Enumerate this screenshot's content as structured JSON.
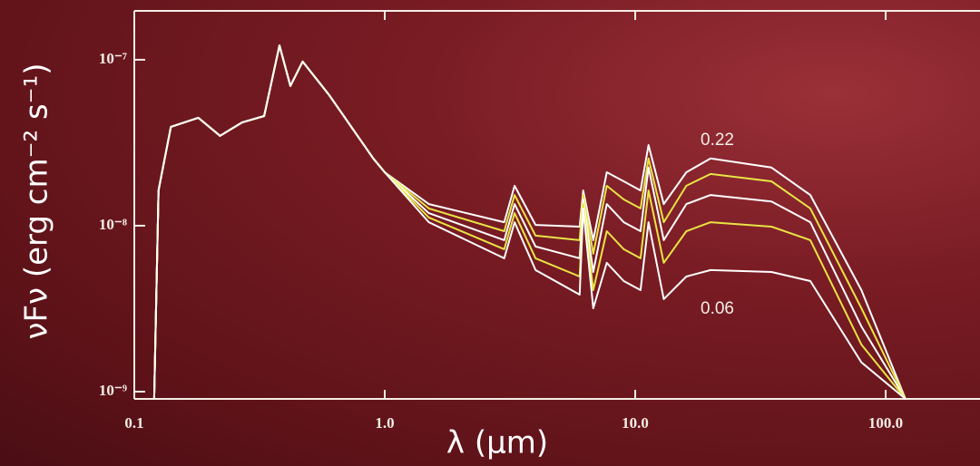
{
  "chart_data": {
    "type": "line",
    "xscale": "log",
    "yscale": "log",
    "x_label": "λ (μm)",
    "y_label": "νFν (erg cm⁻² s⁻¹)",
    "annotations": [
      {
        "text": "0.22"
      },
      {
        "text": "0.06"
      }
    ],
    "xlim": [
      0.1,
      238
    ],
    "ylim": [
      9.04e-10,
      1.97e-07
    ],
    "xticks": [
      0.1,
      {
        "value": 1,
        "label": "1.0"
      },
      {
        "value": 10,
        "label": "10.0"
      },
      {
        "value": 100,
        "label": "100.0"
      }
    ],
    "yticks": [
      {
        "value": 1e-07,
        "label": "10⁻⁷"
      },
      {
        "value": 1e-08,
        "label": "10⁻⁸"
      },
      {
        "value": 1e-09,
        "label": "10⁻⁹"
      }
    ],
    "x": [
      0.12,
      0.125,
      0.14,
      0.18,
      0.22,
      0.27,
      0.33,
      0.38,
      0.42,
      0.47,
      0.6,
      0.9,
      1.0,
      1.5,
      3.0,
      3.3,
      4,
      6.0,
      6.2,
      6.8,
      7.7,
      9,
      10.5,
      11.3,
      13,
      16,
      20,
      35,
      50,
      80,
      120
    ],
    "series": [
      {
        "color": "#ffffff",
        "values": [
          9.04e-10,
          1.63e-08,
          3.94e-08,
          4.47e-08,
          3.48e-08,
          4.2e-08,
          4.58e-08,
          1.22e-07,
          6.95e-08,
          9.75e-08,
          6.12e-08,
          2.54e-08,
          2.1e-08,
          1.35e-08,
          1.05e-08,
          1.74e-08,
          1.01e-08,
          9.87e-09,
          1.63e-08,
          8.18e-09,
          2.1e-08,
          1.85e-08,
          1.63e-08,
          3.06e-08,
          1.35e-08,
          2.1e-08,
          2.54e-08,
          2.24e-08,
          1.53e-08,
          4.09e-09,
          9.04e-10
        ]
      },
      {
        "color": "#e8e445",
        "values": [
          9.04e-10,
          1.63e-08,
          3.94e-08,
          4.47e-08,
          3.48e-08,
          4.2e-08,
          4.58e-08,
          1.22e-07,
          6.95e-08,
          9.75e-08,
          6.12e-08,
          2.54e-08,
          2.1e-08,
          1.27e-08,
          9.27e-09,
          1.53e-08,
          8.71e-09,
          8.18e-09,
          1.53e-08,
          6.77e-09,
          1.74e-08,
          1.44e-08,
          1.27e-08,
          2.54e-08,
          1.05e-08,
          1.74e-08,
          2.05e-08,
          1.85e-08,
          1.27e-08,
          3.18e-09,
          9.04e-10
        ]
      },
      {
        "color": "#ffffff",
        "values": [
          9.04e-10,
          1.63e-08,
          3.94e-08,
          4.47e-08,
          3.48e-08,
          4.2e-08,
          4.58e-08,
          1.22e-07,
          6.95e-08,
          9.75e-08,
          6.12e-08,
          2.54e-08,
          2.1e-08,
          1.19e-08,
          8.18e-09,
          1.35e-08,
          7.49e-09,
          6.36e-09,
          1.44e-08,
          5.26e-09,
          1.35e-08,
          1.05e-08,
          9.27e-09,
          2.24e-08,
          8.18e-09,
          1.35e-08,
          1.53e-08,
          1.4e-08,
          1.05e-08,
          2.47e-09,
          9.04e-10
        ]
      },
      {
        "color": "#e8e445",
        "values": [
          9.04e-10,
          1.63e-08,
          3.94e-08,
          4.47e-08,
          3.48e-08,
          4.2e-08,
          4.58e-08,
          1.22e-07,
          6.95e-08,
          9.75e-08,
          6.12e-08,
          2.54e-08,
          2.1e-08,
          1.12e-08,
          7.21e-09,
          1.19e-08,
          6.36e-09,
          4.94e-09,
          1.35e-08,
          4.09e-09,
          9.27e-09,
          7.21e-09,
          6.36e-09,
          1.63e-08,
          5.97e-09,
          9.27e-09,
          1.05e-08,
          9.87e-09,
          8.18e-09,
          1.92e-09,
          9.04e-10
        ]
      },
      {
        "color": "#ffffff",
        "values": [
          9.04e-10,
          1.63e-08,
          3.94e-08,
          4.47e-08,
          3.48e-08,
          4.2e-08,
          4.58e-08,
          1.22e-07,
          6.95e-08,
          9.75e-08,
          6.12e-08,
          2.54e-08,
          2.1e-08,
          1.05e-08,
          6.36e-09,
          1.05e-08,
          5.4e-09,
          3.84e-09,
          1.27e-08,
          3.18e-09,
          5.97e-09,
          4.64e-09,
          4.09e-09,
          1.05e-08,
          3.61e-09,
          4.94e-09,
          5.4e-09,
          5.26e-09,
          4.64e-09,
          1.5e-09,
          9.04e-10
        ]
      }
    ]
  }
}
